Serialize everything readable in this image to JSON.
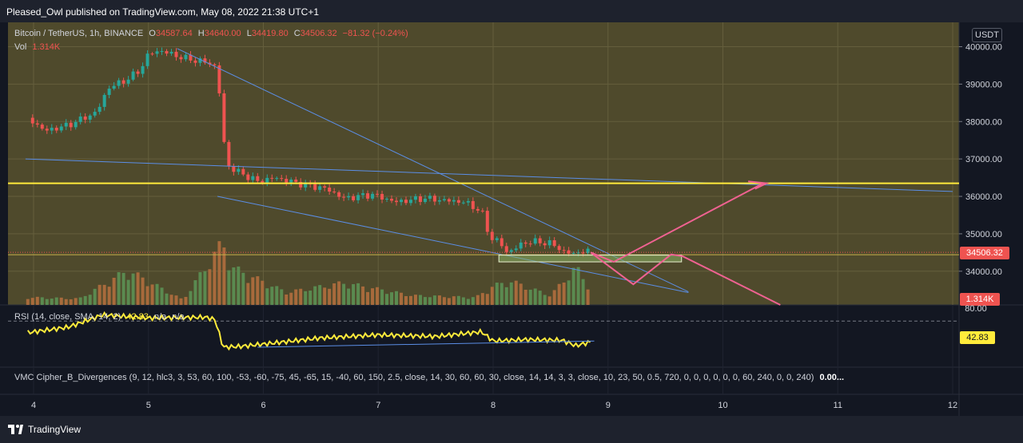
{
  "header": {
    "publisher": "Pleased_Owl published on TradingView.com, May 08, 2022 21:38 UTC+1"
  },
  "footer": {
    "brand": "TradingView"
  },
  "legend": {
    "symbol": "Bitcoin / TetherUS, 1h, BINANCE",
    "o_label": "O",
    "o": "34587.64",
    "h_label": "H",
    "h": "34640.00",
    "l_label": "L",
    "l": "34419.80",
    "c_label": "C",
    "c": "34506.32",
    "change": "−81.32 (−0.24%)",
    "vol_label": "Vol",
    "vol": "1.314K"
  },
  "currency": "USDT",
  "price_badge": "34506.32",
  "vol_badge": "1.314K",
  "rsi": {
    "label": "RSI (14, close, SMA, 14, 2)",
    "value": "42.83",
    "na1": "n/a",
    "na2": "n/a",
    "badge": "42.83",
    "top_tick": "80.00"
  },
  "cipher": {
    "label": "VMC Cipher_B_Divergences (9, 12, hlc3, 3, 53, 60, 100, -53, -60, -75, 45, -65, 15, -40, 60, 150, 2.5, close, 14, 30, 60, 60, 30, close, 14, 14, 3, 3, close, 10, 23, 50, 0.5, 720, 0, 0, 0, 0, 0, 0, 60, 240, 0, 0, 240)",
    "value": "0.00..."
  },
  "colors": {
    "up": "#26a69a",
    "down": "#ef5350",
    "yellow": "#ffeb3b",
    "blue": "#5b8ee6",
    "pink": "#f06292"
  },
  "chart_data": {
    "type": "candlestick",
    "y_ticks": [
      "40000.00",
      "39000.00",
      "38000.00",
      "37000.00",
      "36000.00",
      "35000.00",
      "34000.00"
    ],
    "ylim": [
      33100,
      40650
    ],
    "x_ticks": [
      {
        "label": "4",
        "day": 4
      },
      {
        "label": "5",
        "day": 5
      },
      {
        "label": "6",
        "day": 6
      },
      {
        "label": "7",
        "day": 7
      },
      {
        "label": "8",
        "day": 8
      },
      {
        "label": "9",
        "day": 9
      },
      {
        "label": "10",
        "day": 10
      },
      {
        "label": "11",
        "day": 11
      },
      {
        "label": "12",
        "day": 12
      }
    ],
    "close_path": [
      [
        3.95,
        38100
      ],
      [
        4.1,
        37750
      ],
      [
        4.3,
        37900
      ],
      [
        4.55,
        38250
      ],
      [
        4.65,
        38900
      ],
      [
        4.8,
        39100
      ],
      [
        4.92,
        39350
      ],
      [
        5.0,
        39800
      ],
      [
        5.1,
        39900
      ],
      [
        5.3,
        39700
      ],
      [
        5.55,
        39550
      ],
      [
        5.6,
        39400
      ],
      [
        5.64,
        37900
      ],
      [
        5.68,
        36850
      ],
      [
        5.75,
        36700
      ],
      [
        5.95,
        36400
      ],
      [
        6.1,
        36500
      ],
      [
        6.3,
        36350
      ],
      [
        6.55,
        36200
      ],
      [
        6.7,
        35950
      ],
      [
        6.95,
        36050
      ],
      [
        7.15,
        35850
      ],
      [
        7.4,
        35950
      ],
      [
        7.55,
        35900
      ],
      [
        7.75,
        35850
      ],
      [
        7.9,
        35600
      ],
      [
        7.97,
        34900
      ],
      [
        8.05,
        34800
      ],
      [
        8.12,
        34500
      ],
      [
        8.3,
        34800
      ],
      [
        8.5,
        34750
      ],
      [
        8.6,
        34550
      ],
      [
        8.7,
        34450
      ],
      [
        8.78,
        34550
      ],
      [
        8.85,
        34506
      ]
    ],
    "volume_path": [
      [
        3.95,
        0.12
      ],
      [
        4.4,
        0.1
      ],
      [
        4.82,
        0.55
      ],
      [
        5.3,
        0.08
      ],
      [
        5.65,
        1.0
      ],
      [
        5.72,
        0.6
      ],
      [
        6.2,
        0.2
      ],
      [
        6.7,
        0.35
      ],
      [
        7.3,
        0.15
      ],
      [
        7.85,
        0.12
      ],
      [
        8.0,
        0.3
      ],
      [
        8.15,
        0.38
      ],
      [
        8.5,
        0.15
      ],
      [
        8.72,
        0.6
      ],
      [
        8.85,
        0.25
      ]
    ],
    "horizontal_levels": [
      36350,
      34440
    ],
    "rsi_path": [
      [
        3.95,
        55
      ],
      [
        4.3,
        62
      ],
      [
        4.6,
        78
      ],
      [
        5.0,
        74
      ],
      [
        5.5,
        75
      ],
      [
        5.58,
        72
      ],
      [
        5.65,
        36
      ],
      [
        5.8,
        37
      ],
      [
        6.0,
        40
      ],
      [
        6.5,
        48
      ],
      [
        7.0,
        52
      ],
      [
        7.5,
        50
      ],
      [
        7.9,
        56
      ],
      [
        8.0,
        44
      ],
      [
        8.3,
        46
      ],
      [
        8.6,
        45
      ],
      [
        8.72,
        38
      ],
      [
        8.85,
        42.83
      ]
    ]
  }
}
